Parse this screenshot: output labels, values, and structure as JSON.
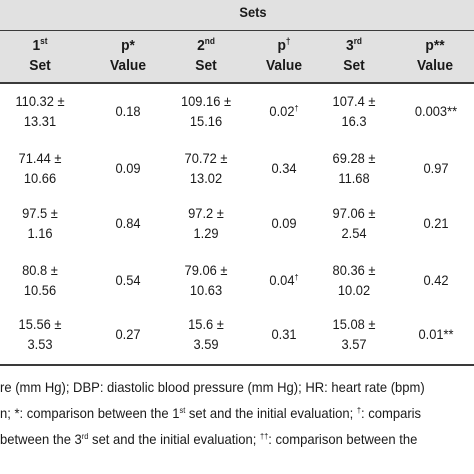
{
  "table": {
    "super_header": "Sets",
    "headers": [
      {
        "main": "1",
        "sup": "st",
        "sub": "Set"
      },
      {
        "main": "p*",
        "sup": "",
        "sub": "Value"
      },
      {
        "main": "2",
        "sup": "nd",
        "sub": "Set"
      },
      {
        "main": "p",
        "sup": "†",
        "sub": "Value"
      },
      {
        "main": "3",
        "sup": "rd",
        "sub": "Set"
      },
      {
        "main": "p**",
        "sup": "",
        "sub": "Value"
      }
    ],
    "rows": [
      {
        "set1": {
          "l1": "110.32 ±",
          "l2": "13.31"
        },
        "p1": {
          "v": "0.18",
          "sup": ""
        },
        "set2": {
          "l1": "109.16 ±",
          "l2": "15.16"
        },
        "p2": {
          "v": "0.02",
          "sup": "†"
        },
        "set3": {
          "l1": "107.4 ±",
          "l2": "16.3"
        },
        "p3": {
          "v": "0.003**",
          "sup": ""
        }
      },
      {
        "set1": {
          "l1": "71.44 ±",
          "l2": "10.66"
        },
        "p1": {
          "v": "0.09",
          "sup": ""
        },
        "set2": {
          "l1": "70.72 ±",
          "l2": "13.02"
        },
        "p2": {
          "v": "0.34",
          "sup": ""
        },
        "set3": {
          "l1": "69.28 ±",
          "l2": "11.68"
        },
        "p3": {
          "v": "0.97",
          "sup": ""
        }
      },
      {
        "set1": {
          "l1": "97.5 ±",
          "l2": "1.16"
        },
        "p1": {
          "v": "0.84",
          "sup": ""
        },
        "set2": {
          "l1": "97.2 ±",
          "l2": "1.29"
        },
        "p2": {
          "v": "0.09",
          "sup": ""
        },
        "set3": {
          "l1": "97.06 ±",
          "l2": "2.54"
        },
        "p3": {
          "v": "0.21",
          "sup": ""
        }
      },
      {
        "set1": {
          "l1": "80.8 ±",
          "l2": "10.56"
        },
        "p1": {
          "v": "0.54",
          "sup": ""
        },
        "set2": {
          "l1": "79.06 ±",
          "l2": "10.63"
        },
        "p2": {
          "v": "0.04",
          "sup": "†"
        },
        "set3": {
          "l1": "80.36 ±",
          "l2": "10.02"
        },
        "p3": {
          "v": "0.42",
          "sup": ""
        }
      },
      {
        "set1": {
          "l1": "15.56 ±",
          "l2": "3.53"
        },
        "p1": {
          "v": "0.27",
          "sup": ""
        },
        "set2": {
          "l1": "15.6 ±",
          "l2": "3.59"
        },
        "p2": {
          "v": "0.31",
          "sup": ""
        },
        "set3": {
          "l1": "15.08 ±",
          "l2": "3.57"
        },
        "p3": {
          "v": "0.01**",
          "sup": ""
        }
      }
    ]
  },
  "footnotes": {
    "line1": "re (mm Hg); DBP: diastolic blood pressure (mm Hg); HR: heart rate (bpm)",
    "line2": {
      "a": "n; *: comparison between the 1",
      "a_sup": "st",
      "b": " set and the initial evaluation; ",
      "b_sup": "†",
      "c": ": comparis"
    },
    "line3": {
      "a": " between the 3",
      "a_sup": "rd",
      "b": " set and the initial evaluation; ",
      "b_sup": "††",
      "c": ": comparison between the"
    }
  }
}
